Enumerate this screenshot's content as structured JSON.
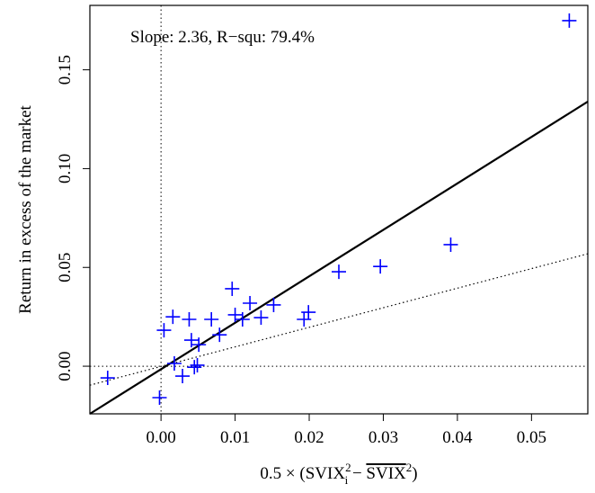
{
  "chart_data": {
    "type": "scatter",
    "annotation": "Slope: 2.36,  R−squ: 79.4%",
    "ylabel": "Return in excess of the market",
    "xlabel_parts": {
      "main": "0.5 × (SVIX",
      "sup1": "2",
      "sub1": "i",
      "minus": " − ",
      "bar": "SVIX",
      "sup2": "2",
      "close": ")"
    },
    "xlim": [
      -0.0096,
      0.0576
    ],
    "ylim": [
      -0.0241,
      0.1826
    ],
    "xticks": [
      {
        "value": 0,
        "label": "0.00"
      },
      {
        "value": 0.01,
        "label": "0.01"
      },
      {
        "value": 0.02,
        "label": "0.02"
      },
      {
        "value": 0.03,
        "label": "0.03"
      },
      {
        "value": 0.04,
        "label": "0.04"
      },
      {
        "value": 0.05,
        "label": "0.05"
      }
    ],
    "yticks": [
      {
        "value": 0,
        "label": "0.00"
      },
      {
        "value": 0.05,
        "label": "0.05"
      },
      {
        "value": 0.1,
        "label": "0.10"
      },
      {
        "value": 0.15,
        "label": "0.15"
      }
    ],
    "color": "#0000ff",
    "x": [
      -0.0072,
      -0.0002,
      0.0004,
      0.0016,
      0.0018,
      0.0029,
      0.0038,
      0.0041,
      0.0045,
      0.0049,
      0.0051,
      0.0068,
      0.0079,
      0.0096,
      0.01,
      0.011,
      0.012,
      0.0135,
      0.0152,
      0.0193,
      0.0199,
      0.024,
      0.0296,
      0.0391,
      0.0551
    ],
    "y": [
      -0.0059,
      -0.0159,
      0.0182,
      0.025,
      0.0014,
      -0.005,
      0.0237,
      0.0132,
      -0.0005,
      0.0005,
      0.0109,
      0.0237,
      0.0159,
      0.0392,
      0.026,
      0.0237,
      0.0319,
      0.0246,
      0.031,
      0.0237,
      0.0273,
      0.0478,
      0.0505,
      0.0615,
      0.1749
    ],
    "lines": [
      {
        "style": "solid",
        "x": [
          -0.0096,
          0.0576
        ],
        "y": [
          -0.0241,
          0.1339
        ]
      },
      {
        "style": "dotted",
        "x": [
          -0.0096,
          0.0576
        ],
        "y": [
          -0.0096,
          0.0569
        ]
      }
    ]
  }
}
